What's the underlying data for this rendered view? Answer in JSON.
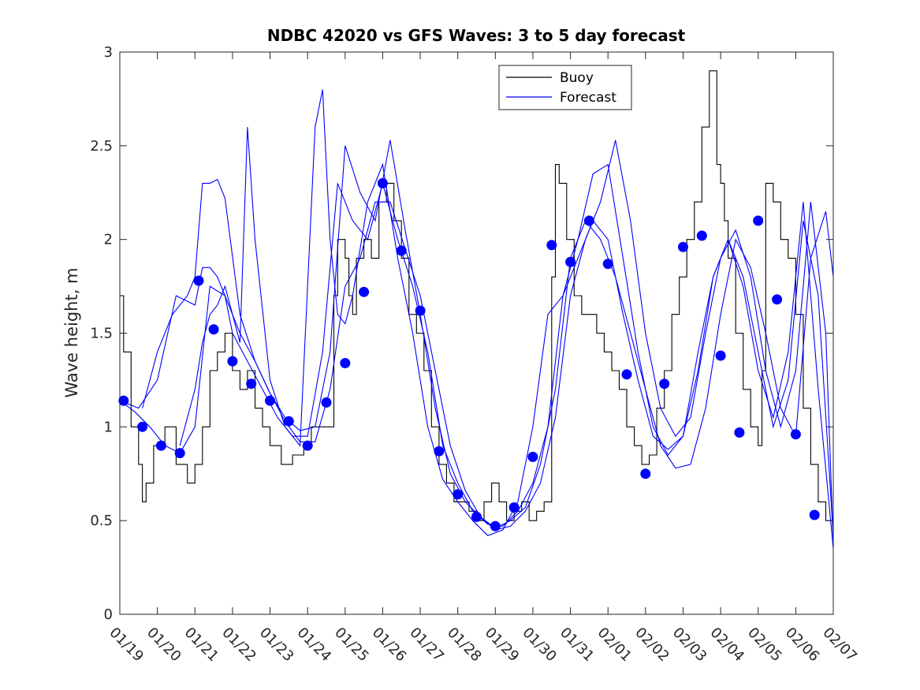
{
  "chart_data": {
    "type": "line",
    "title": "NDBC 42020 vs GFS Waves: 3 to 5 day forecast",
    "xlabel": "",
    "ylabel": "Wave height, m",
    "xlim": [
      0,
      19
    ],
    "ylim": [
      0,
      3
    ],
    "x_unit": "days since 01/19",
    "x_ticks": [
      0,
      1,
      2,
      3,
      4,
      5,
      6,
      7,
      8,
      9,
      10,
      11,
      12,
      13,
      14,
      15,
      16,
      17,
      18,
      19
    ],
    "x_tick_labels": [
      "01/19",
      "01/20",
      "01/21",
      "01/22",
      "01/23",
      "01/24",
      "01/25",
      "01/26",
      "01/27",
      "01/28",
      "01/29",
      "01/30",
      "01/31",
      "02/01",
      "02/02",
      "02/03",
      "02/04",
      "02/05",
      "02/06",
      "02/07"
    ],
    "y_ticks": [
      0,
      0.5,
      1,
      1.5,
      2,
      2.5,
      3
    ],
    "y_tick_labels": [
      "0",
      "0.5",
      "1",
      "1.5",
      "2",
      "2.5",
      "3"
    ],
    "grid": false,
    "legend_position": "top-right",
    "legend": [
      {
        "label": "Buoy",
        "color": "#000000"
      },
      {
        "label": "Forecast",
        "color": "#0000ff"
      }
    ],
    "colors": {
      "buoy": "#000000",
      "forecast": "#0000ff",
      "axis": "#262626"
    },
    "buoy": {
      "name": "Buoy",
      "x": [
        0,
        0.1,
        0.3,
        0.5,
        0.6,
        0.7,
        0.9,
        1.2,
        1.5,
        1.8,
        2.0,
        2.2,
        2.4,
        2.6,
        2.8,
        3.0,
        3.2,
        3.4,
        3.6,
        3.8,
        4.0,
        4.3,
        4.6,
        4.9,
        5.1,
        5.3,
        5.5,
        5.7,
        5.8,
        6.0,
        6.1,
        6.2,
        6.3,
        6.5,
        6.7,
        6.9,
        7.1,
        7.3,
        7.5,
        7.7,
        7.9,
        8.1,
        8.3,
        8.5,
        8.7,
        8.9,
        9.1,
        9.3,
        9.5,
        9.7,
        9.9,
        10.1,
        10.3,
        10.5,
        10.7,
        10.9,
        11.1,
        11.3,
        11.5,
        11.6,
        11.7,
        11.9,
        12.1,
        12.3,
        12.5,
        12.7,
        12.9,
        13.1,
        13.3,
        13.5,
        13.7,
        13.9,
        14.1,
        14.3,
        14.5,
        14.7,
        14.9,
        15.1,
        15.3,
        15.5,
        15.7,
        15.9,
        16.0,
        16.1,
        16.2,
        16.4,
        16.6,
        16.8,
        17.0,
        17.1,
        17.2,
        17.4,
        17.6,
        17.8,
        18.0,
        18.2,
        18.4,
        18.6,
        18.8,
        19.0
      ],
      "y": [
        1.7,
        1.4,
        1.0,
        0.8,
        0.6,
        0.7,
        0.9,
        1.0,
        0.8,
        0.7,
        0.8,
        1.0,
        1.3,
        1.4,
        1.5,
        1.3,
        1.2,
        1.3,
        1.1,
        1.0,
        0.9,
        0.8,
        0.85,
        0.9,
        1.0,
        1.0,
        1.0,
        1.7,
        2.0,
        1.9,
        1.7,
        1.6,
        1.9,
        2.0,
        1.9,
        2.2,
        2.3,
        2.1,
        1.9,
        1.6,
        1.5,
        1.3,
        1.0,
        0.8,
        0.7,
        0.6,
        0.6,
        0.55,
        0.5,
        0.6,
        0.7,
        0.6,
        0.5,
        0.55,
        0.6,
        0.5,
        0.55,
        0.6,
        1.8,
        2.4,
        2.3,
        2.0,
        1.7,
        1.6,
        1.6,
        1.5,
        1.4,
        1.3,
        1.2,
        1.0,
        0.9,
        0.8,
        0.85,
        1.1,
        1.3,
        1.6,
        1.8,
        2.0,
        2.2,
        2.6,
        2.9,
        2.4,
        2.3,
        2.1,
        1.9,
        1.5,
        1.2,
        1.0,
        0.9,
        1.3,
        2.3,
        2.2,
        2.0,
        1.9,
        1.6,
        1.1,
        0.8,
        0.6,
        0.5,
        0.5
      ]
    },
    "forecast_series": [
      {
        "name": "Forecast",
        "x": [
          0,
          0.4,
          0.8,
          1.2,
          1.6,
          2.0,
          2.4,
          2.8,
          3.2,
          3.6,
          4.0,
          4.4,
          4.8,
          5.2,
          5.6,
          6.0,
          6.4,
          6.8,
          7.2,
          7.6,
          8.0,
          8.4,
          8.8,
          9.2,
          9.6,
          10.0,
          10.4,
          10.8,
          11.2,
          11.6,
          12.0,
          12.4,
          12.8,
          13.2,
          13.6,
          14.0,
          14.4,
          14.8,
          15.2,
          15.6,
          16.0,
          16.4,
          16.8,
          17.2,
          17.6,
          18.0,
          18.4,
          18.8,
          19.0
        ],
        "y": [
          1.14,
          1.08,
          1.0,
          0.9,
          0.86,
          1.0,
          1.75,
          1.7,
          1.5,
          1.35,
          1.18,
          1.03,
          0.92,
          0.92,
          1.2,
          1.75,
          1.9,
          2.2,
          2.2,
          1.95,
          1.7,
          1.3,
          0.9,
          0.66,
          0.52,
          0.46,
          0.5,
          0.57,
          0.8,
          1.2,
          1.9,
          2.1,
          2.0,
          1.8,
          1.5,
          1.2,
          0.9,
          0.78,
          0.8,
          1.1,
          1.6,
          2.0,
          1.85,
          1.5,
          1.1,
          0.95,
          1.9,
          2.15,
          1.8
        ]
      },
      {
        "name": "Forecast",
        "x": [
          0,
          0.5,
          1.0,
          1.5,
          2.0,
          2.2,
          2.4,
          2.6,
          2.8,
          3.0,
          3.4,
          3.8,
          4.2,
          4.6,
          5.0,
          5.4,
          5.8,
          6.2,
          6.6,
          7.0,
          7.4,
          7.8,
          8.2,
          8.6,
          9.0,
          9.4,
          9.8,
          10.2,
          10.6,
          11.0,
          11.4,
          11.8,
          12.2,
          12.6,
          13.0,
          13.4,
          13.8,
          14.2,
          14.6,
          15.0,
          15.4,
          15.8,
          16.2,
          16.6,
          17.0,
          17.4,
          17.8,
          18.2,
          18.6,
          19.0
        ],
        "y": [
          1.14,
          1.1,
          1.25,
          1.7,
          1.65,
          1.85,
          1.85,
          1.8,
          1.7,
          1.5,
          1.35,
          1.2,
          1.05,
          0.95,
          0.95,
          1.4,
          2.3,
          2.1,
          2.0,
          2.3,
          2.0,
          1.75,
          1.4,
          0.9,
          0.7,
          0.55,
          0.48,
          0.47,
          0.55,
          0.7,
          1.0,
          1.7,
          1.9,
          2.1,
          2.0,
          1.6,
          1.25,
          0.95,
          0.88,
          0.95,
          1.3,
          1.8,
          2.0,
          1.8,
          1.4,
          1.0,
          1.25,
          2.1,
          1.7,
          0.42
        ]
      },
      {
        "name": "Forecast",
        "x": [
          0.6,
          1.0,
          1.4,
          1.8,
          2.0,
          2.2,
          2.4,
          2.6,
          2.8,
          3.2,
          3.6,
          4.0,
          4.4,
          4.8,
          5.2,
          5.6,
          6.0,
          6.4,
          6.8,
          7.2,
          7.6,
          8.0,
          8.4,
          8.8,
          9.2,
          9.6,
          10.0,
          10.4,
          10.8,
          11.2,
          11.6,
          12.0,
          12.4,
          12.8,
          13.2,
          13.6,
          14.0,
          14.4,
          14.8,
          15.2,
          15.6,
          16.0,
          16.4,
          16.8,
          17.2,
          17.6,
          18.0,
          18.4,
          18.8,
          19.0
        ],
        "y": [
          1.1,
          1.4,
          1.6,
          1.7,
          1.8,
          2.3,
          2.3,
          2.32,
          2.22,
          1.6,
          1.35,
          1.18,
          1.05,
          0.98,
          1.0,
          1.4,
          2.5,
          2.25,
          2.1,
          2.53,
          2.05,
          1.6,
          1.1,
          0.75,
          0.6,
          0.52,
          0.45,
          0.47,
          0.55,
          0.7,
          1.05,
          1.7,
          2.0,
          2.2,
          2.53,
          2.1,
          1.5,
          1.1,
          0.95,
          1.05,
          1.5,
          1.9,
          2.05,
          1.8,
          1.3,
          1.0,
          1.3,
          2.2,
          1.5,
          0.38
        ]
      },
      {
        "name": "Forecast",
        "x": [
          1.6,
          2.0,
          2.2,
          2.4,
          2.6,
          2.8,
          3.0,
          3.2,
          3.4,
          3.6,
          4.0,
          4.4,
          4.8,
          5.2,
          5.4,
          5.6,
          5.8,
          6.0,
          6.2,
          6.6,
          7.0,
          7.4,
          7.8,
          8.2,
          8.6,
          9.0,
          9.4,
          9.8,
          10.2,
          10.6,
          11.0,
          11.4,
          11.8,
          12.2,
          12.6,
          13.0,
          13.4,
          13.8,
          14.2,
          14.6,
          15.0,
          15.4,
          15.8,
          16.2,
          16.6,
          17.0,
          17.4,
          17.8,
          18.2,
          18.6,
          19.0
        ],
        "y": [
          0.9,
          1.2,
          1.45,
          1.6,
          1.65,
          1.75,
          1.6,
          1.45,
          2.6,
          2.0,
          1.25,
          1.0,
          0.9,
          2.6,
          2.8,
          2.0,
          1.6,
          1.55,
          1.7,
          2.2,
          2.4,
          1.9,
          1.5,
          1.0,
          0.72,
          0.6,
          0.5,
          0.42,
          0.45,
          0.6,
          1.0,
          1.6,
          1.7,
          2.0,
          2.35,
          2.4,
          1.9,
          1.4,
          1.0,
          0.85,
          0.95,
          1.4,
          1.8,
          2.0,
          1.75,
          1.3,
          1.05,
          1.4,
          2.2,
          1.2,
          0.35
        ]
      }
    ],
    "markers": {
      "name": "Forecast markers",
      "x": [
        0.1,
        0.6,
        1.1,
        1.6,
        2.1,
        2.5,
        3.0,
        3.5,
        4.0,
        4.5,
        5.0,
        5.5,
        6.0,
        6.5,
        7.0,
        7.5,
        8.0,
        8.5,
        9.0,
        9.5,
        10.0,
        10.5,
        11.0,
        11.5,
        12.0,
        12.5,
        13.0,
        13.5,
        14.0,
        14.5,
        15.0,
        15.5,
        16.0,
        16.5,
        17.0,
        17.5,
        18.0,
        18.5
      ],
      "y": [
        1.14,
        1.0,
        0.9,
        0.86,
        1.78,
        1.52,
        1.35,
        1.23,
        1.14,
        1.03,
        0.9,
        1.13,
        1.34,
        1.72,
        2.3,
        1.94,
        1.62,
        0.87,
        0.64,
        0.52,
        0.47,
        0.57,
        0.84,
        1.97,
        1.88,
        2.1,
        1.87,
        1.28,
        0.75,
        1.23,
        1.96,
        2.02,
        1.38,
        0.97,
        2.1,
        1.68,
        0.96,
        0.53
      ]
    }
  }
}
